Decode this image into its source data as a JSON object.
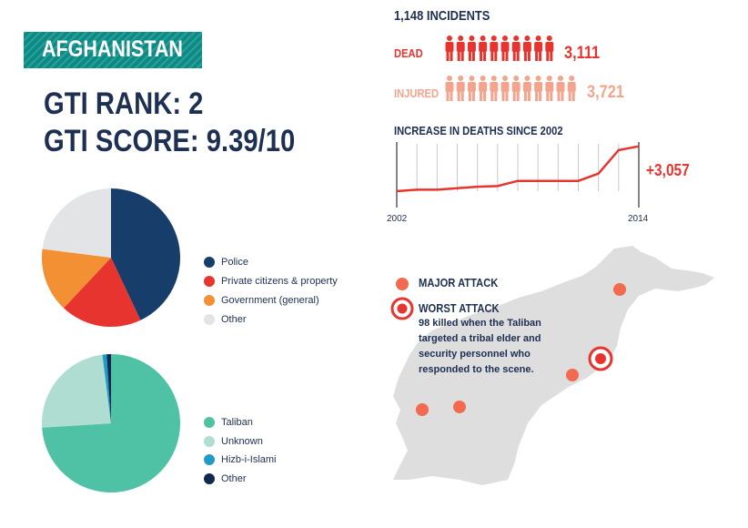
{
  "header": {
    "country": "AFGHANISTAN",
    "rank_text": "GTI RANK: 2",
    "score_text": "GTI SCORE: 9.39/10"
  },
  "summary": {
    "incidents": "1,148 INCIDENTS",
    "dead_label": "DEAD",
    "dead_value": "3,111",
    "injured_label": "INJURED",
    "injured_value": "3,721"
  },
  "colors": {
    "banner": "#0e8a84",
    "police": "#173e6b",
    "private": "#e8342e",
    "government": "#f39033",
    "other_light": "#e3e4e6",
    "taliban": "#4fc1a5",
    "unknown": "#b0ddd1",
    "hizb": "#1e9bc7",
    "other_dark": "#12294f",
    "dead": "#e8342e",
    "injured": "#f4a48c",
    "map": "#dedede"
  },
  "chart_data": [
    {
      "type": "pie",
      "name": "targets",
      "labels": [
        "Police",
        "Private citizens & property",
        "Government (general)",
        "Other"
      ],
      "values": [
        43,
        19,
        15,
        23
      ]
    },
    {
      "type": "pie",
      "name": "groups",
      "labels": [
        "Taliban",
        "Unknown",
        "Hizb-i-Islami",
        "Other"
      ],
      "values": [
        74,
        24,
        1,
        1
      ]
    },
    {
      "type": "line",
      "title": "INCREASE IN DEATHS SINCE 2002",
      "x": [
        2002,
        2003,
        2004,
        2005,
        2006,
        2007,
        2008,
        2009,
        2010,
        2011,
        2012,
        2013,
        2014
      ],
      "values": [
        0,
        100,
        100,
        200,
        300,
        350,
        700,
        700,
        700,
        700,
        1200,
        2800,
        3057
      ],
      "xtick_labels": [
        "2002",
        "2014"
      ],
      "annotation": "+3,057"
    }
  ],
  "map": {
    "major_label": "MAJOR ATTACK",
    "worst_label": "WORST ATTACK",
    "worst_desc": [
      "98 killed when the Taliban",
      "targeted a tribal elder and",
      "security personnel who",
      "responded to the scene."
    ]
  }
}
